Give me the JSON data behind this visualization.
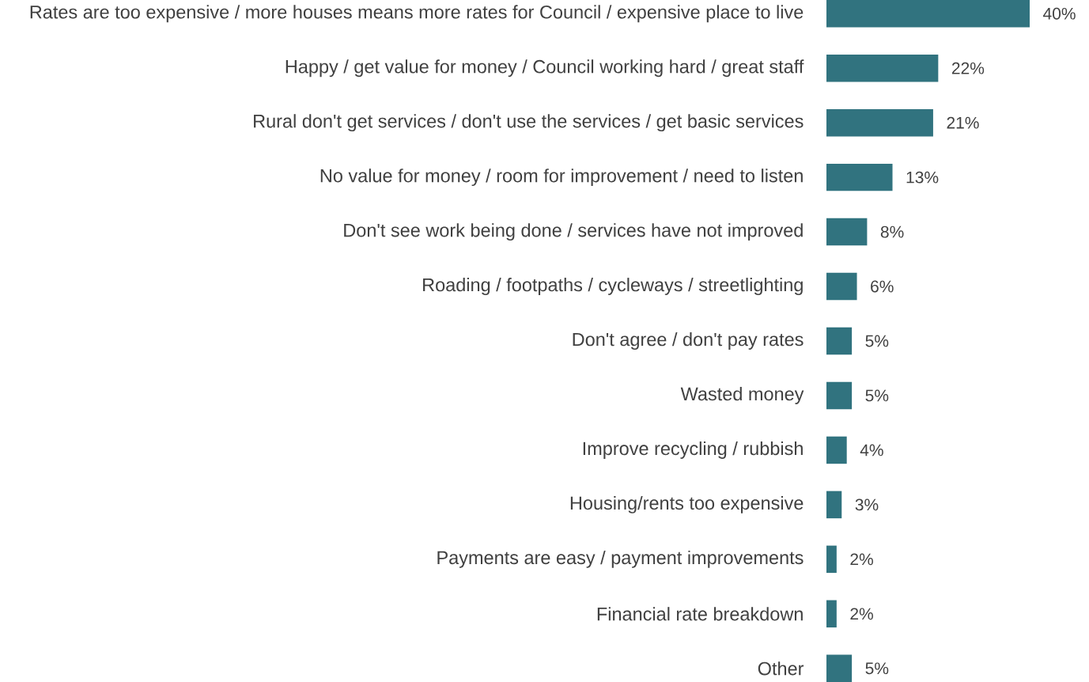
{
  "chart_data": {
    "type": "bar",
    "orientation": "horizontal",
    "categories": [
      "Rates are too expensive / more houses means more rates for Council / expensive place to live",
      "Happy / get value for money / Council working hard / great staff",
      "Rural don't get services / don't use the services / get basic services",
      "No value for money / room for improvement / need to listen",
      "Don't see work being done / services have not improved",
      "Roading / footpaths / cycleways / streetlighting",
      "Don't agree / don't pay rates",
      "Wasted money",
      "Improve recycling / rubbish",
      "Housing/rents too expensive",
      "Payments are easy / payment improvements",
      "Financial rate breakdown",
      "Other"
    ],
    "values": [
      40,
      22,
      21,
      13,
      8,
      6,
      5,
      5,
      4,
      3,
      2,
      2,
      5
    ],
    "value_labels": [
      "40%",
      "22%",
      "21%",
      "13%",
      "8%",
      "6%",
      "5%",
      "5%",
      "4%",
      "3%",
      "2%",
      "2%",
      "5%"
    ],
    "color": "#31737f"
  }
}
